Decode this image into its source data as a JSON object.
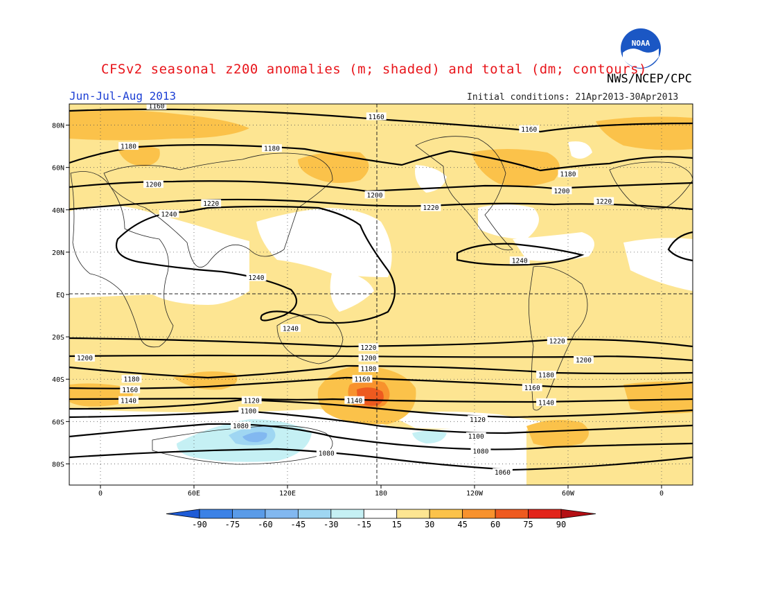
{
  "header": {
    "title": "CFSv2 seasonal z200 anomalies (m; shaded) and total (dm; contours)",
    "agency": "NWS/NCEP/CPC",
    "season": "Jun-Jul-Aug 2013",
    "initial_conditions": "Initial conditions: 21Apr2013-30Apr2013",
    "logo_text": "NOAA",
    "title_color": "#e8141a",
    "season_color": "#1c3fd4"
  },
  "map": {
    "lon_labels": [
      "0",
      "60E",
      "120E",
      "180",
      "120W",
      "60W",
      "0"
    ],
    "lat_labels": [
      "80N",
      "60N",
      "40N",
      "20N",
      "EQ",
      "20S",
      "40S",
      "60S",
      "80S"
    ],
    "contour_labels": [
      {
        "text": "1160",
        "lon": 36,
        "lat": 89
      },
      {
        "text": "1160",
        "lon": 177,
        "lat": 84
      },
      {
        "text": "1160",
        "lon": 275,
        "lat": 78
      },
      {
        "text": "1180",
        "lon": 18,
        "lat": 70
      },
      {
        "text": "1180",
        "lon": 110,
        "lat": 69
      },
      {
        "text": "1180",
        "lon": 300,
        "lat": 57
      },
      {
        "text": "1200",
        "lon": 34,
        "lat": 52
      },
      {
        "text": "1200",
        "lon": 176,
        "lat": 47
      },
      {
        "text": "1200",
        "lon": 296,
        "lat": 49
      },
      {
        "text": "1220",
        "lon": 71,
        "lat": 43
      },
      {
        "text": "1220",
        "lon": 212,
        "lat": 41
      },
      {
        "text": "1220",
        "lon": 323,
        "lat": 44
      },
      {
        "text": "1240",
        "lon": 44,
        "lat": 38
      },
      {
        "text": "1240",
        "lon": 100,
        "lat": 8
      },
      {
        "text": "1240",
        "lon": 122,
        "lat": -16
      },
      {
        "text": "1240",
        "lon": 269,
        "lat": 16
      },
      {
        "text": "1220",
        "lon": 172,
        "lat": -25
      },
      {
        "text": "1220",
        "lon": 293,
        "lat": -22
      },
      {
        "text": "1200",
        "lon": -10,
        "lat": -30
      },
      {
        "text": "1200",
        "lon": 172,
        "lat": -30
      },
      {
        "text": "1200",
        "lon": 310,
        "lat": -31
      },
      {
        "text": "1180",
        "lon": 20,
        "lat": -40
      },
      {
        "text": "1180",
        "lon": 172,
        "lat": -35
      },
      {
        "text": "1180",
        "lon": 286,
        "lat": -38
      },
      {
        "text": "1160",
        "lon": 19,
        "lat": -45
      },
      {
        "text": "1160",
        "lon": 168,
        "lat": -40
      },
      {
        "text": "1160",
        "lon": 277,
        "lat": -44
      },
      {
        "text": "1140",
        "lon": 18,
        "lat": -50
      },
      {
        "text": "1140",
        "lon": 163,
        "lat": -50
      },
      {
        "text": "1140",
        "lon": 286,
        "lat": -51
      },
      {
        "text": "1120",
        "lon": 97,
        "lat": -50
      },
      {
        "text": "1120",
        "lon": 242,
        "lat": -59
      },
      {
        "text": "1100",
        "lon": 95,
        "lat": -55
      },
      {
        "text": "1100",
        "lon": 241,
        "lat": -67
      },
      {
        "text": "1080",
        "lon": 90,
        "lat": -62
      },
      {
        "text": "1080",
        "lon": 145,
        "lat": -75
      },
      {
        "text": "1080",
        "lon": 244,
        "lat": -74
      },
      {
        "text": "1060",
        "lon": 258,
        "lat": -84
      }
    ]
  },
  "colorbar": {
    "labels": [
      "-90",
      "-75",
      "-60",
      "-45",
      "-30",
      "-15",
      "15",
      "30",
      "45",
      "60",
      "75",
      "90"
    ],
    "colors": [
      "#1e5bd6",
      "#3c82e6",
      "#5a9be8",
      "#82b8f0",
      "#9fd6f2",
      "#c5f0f4",
      "#ffffff",
      "#fde592",
      "#fbc24a",
      "#f8922d",
      "#ee5a1f",
      "#e2241b",
      "#b40f14"
    ]
  }
}
